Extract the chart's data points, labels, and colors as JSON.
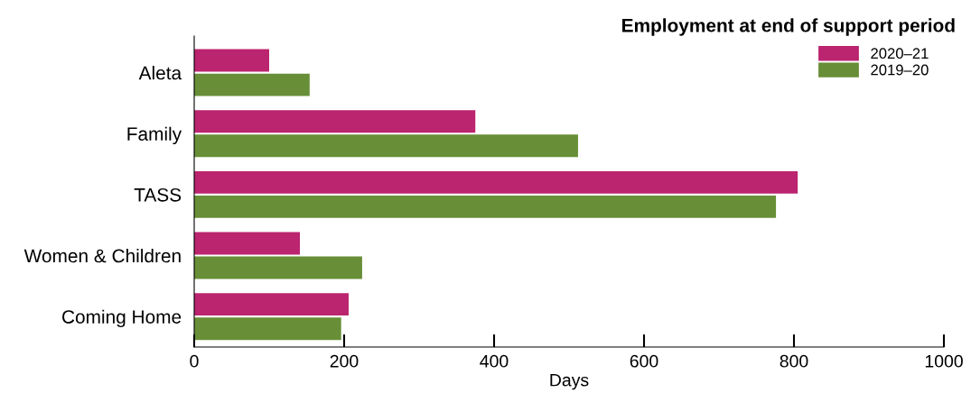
{
  "chart_data": {
    "type": "bar",
    "orientation": "horizontal",
    "title": "Employment at end of support period",
    "xlabel": "Days",
    "categories": [
      "Aleta",
      "Family",
      "TASS",
      "Women & Children",
      "Coming Home"
    ],
    "series": [
      {
        "name": "2020–21",
        "color": "#bb246e",
        "values": [
          100,
          375,
          805,
          141,
          206
        ]
      },
      {
        "name": "2019–20",
        "color": "#688e37",
        "values": [
          154,
          512,
          776,
          224,
          196
        ]
      }
    ],
    "xlim": [
      0,
      1000
    ],
    "xticks": [
      0,
      200,
      400,
      600,
      800,
      1000
    ],
    "grid": false,
    "legend": "top right"
  }
}
